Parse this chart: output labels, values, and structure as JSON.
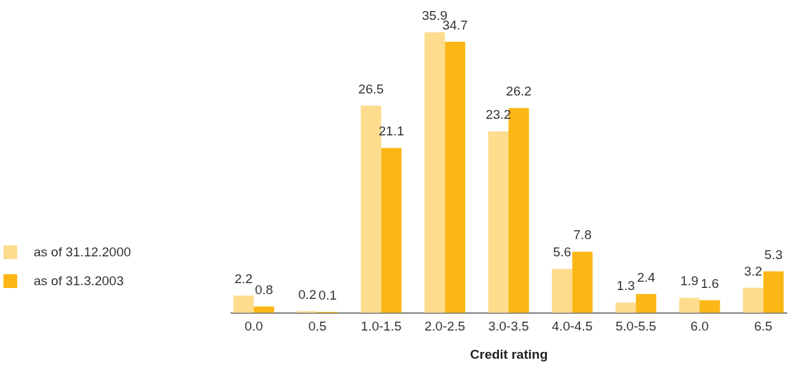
{
  "chart_data": {
    "type": "bar",
    "xlabel": "Credit rating",
    "categories": [
      "0.0",
      "0.5",
      "1.0-1.5",
      "2.0-2.5",
      "3.0-3.5",
      "4.0-4.5",
      "5.0-5.5",
      "6.0",
      "6.5"
    ],
    "series": [
      {
        "name": "as of 31.12.2000",
        "color": "#fddc8d",
        "values": [
          2.2,
          0.2,
          26.5,
          35.9,
          23.2,
          5.6,
          1.3,
          1.9,
          3.2
        ]
      },
      {
        "name": "as of 31.3.2003",
        "color": "#fbb716",
        "values": [
          0.8,
          0.1,
          21.1,
          34.7,
          26.2,
          7.8,
          2.4,
          1.6,
          5.3
        ]
      }
    ],
    "data_labels": true,
    "legend": "left",
    "grid": false
  }
}
